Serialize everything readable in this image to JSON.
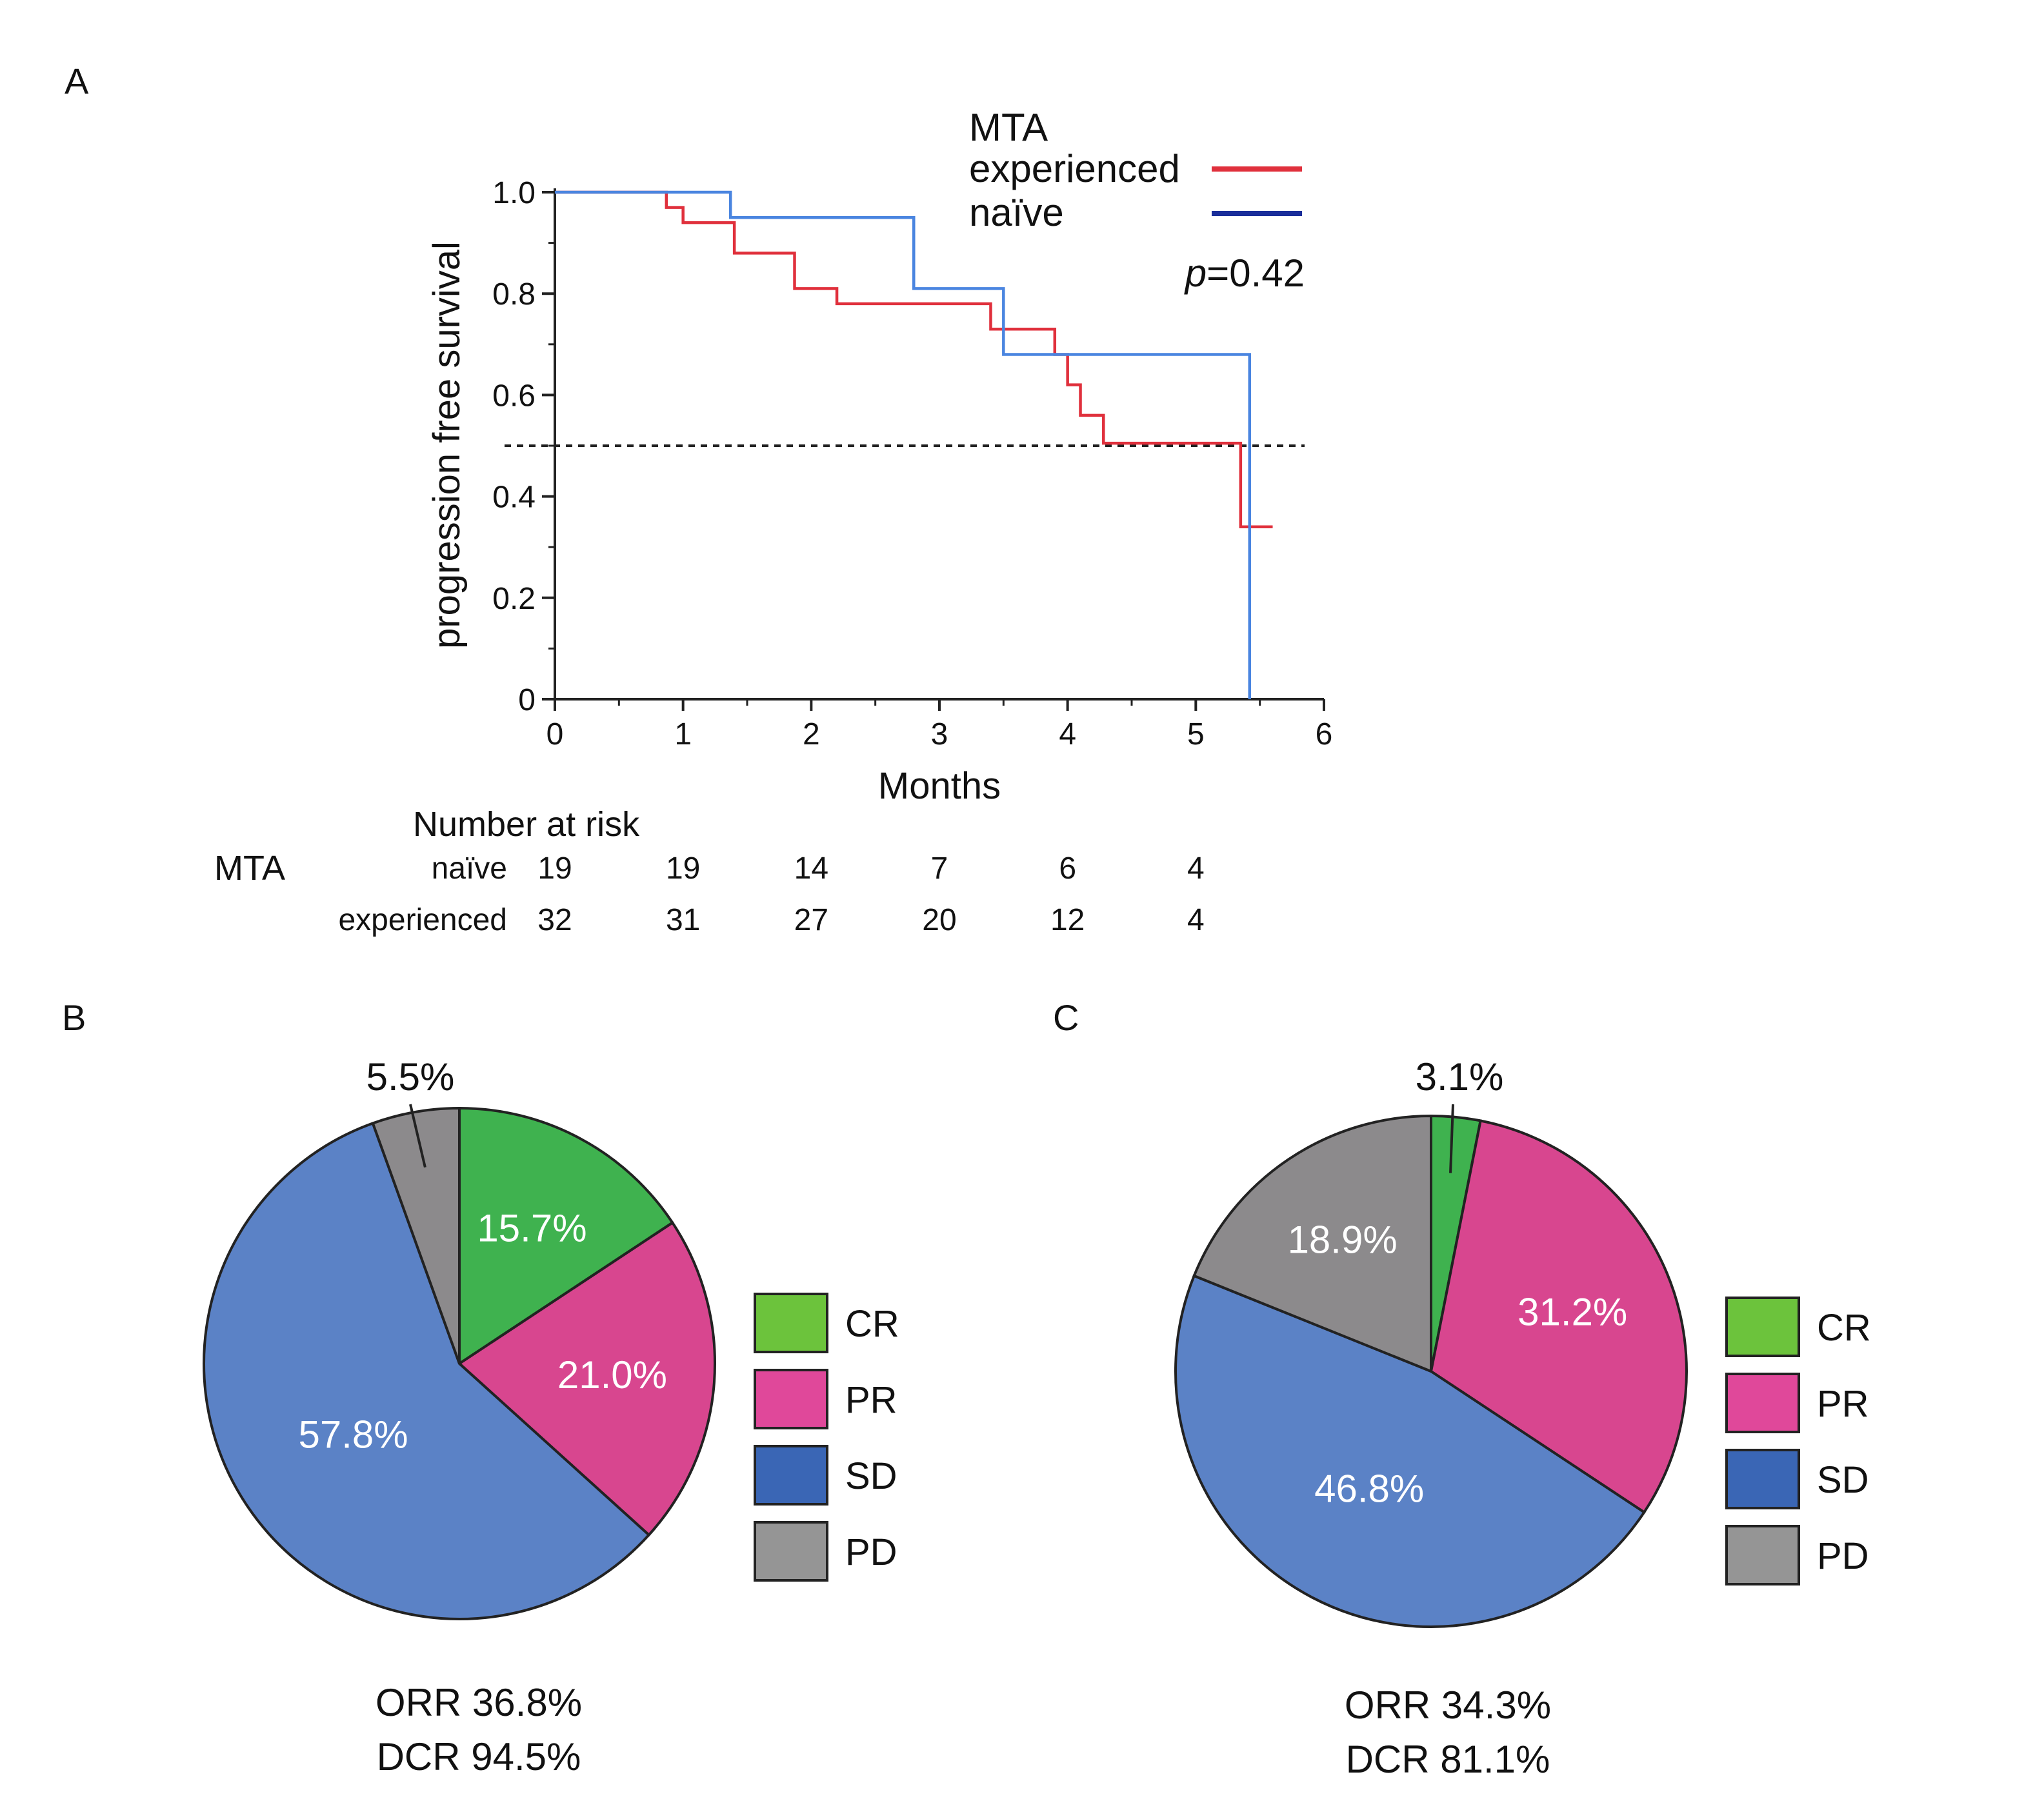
{
  "chart_data": [
    {
      "panel": "A",
      "type": "line",
      "title": "",
      "xlabel": "Months",
      "ylabel": "progression free survival",
      "xlim": [
        0,
        6
      ],
      "ylim": [
        0,
        1
      ],
      "x_ticks": [
        "0",
        "1",
        "2",
        "3",
        "4",
        "5",
        "6"
      ],
      "y_ticks": [
        "0",
        "0.2",
        "0.4",
        "0.6",
        "0.8",
        "1.0"
      ],
      "reference_line_y": 0.5,
      "legend_title": "MTA",
      "p_value": {
        "prefix": "p",
        "text": "=0.42"
      },
      "series": [
        {
          "name": "experienced",
          "color": "#e0303c",
          "steps": [
            [
              0,
              1.0
            ],
            [
              0.87,
              0.97
            ],
            [
              1.0,
              0.94
            ],
            [
              1.4,
              0.88
            ],
            [
              1.87,
              0.81
            ],
            [
              2.2,
              0.78
            ],
            [
              3.4,
              0.73
            ],
            [
              3.9,
              0.68
            ],
            [
              4.0,
              0.62
            ],
            [
              4.1,
              0.56
            ],
            [
              4.28,
              0.505
            ],
            [
              5.35,
              0.34
            ],
            [
              5.6,
              0.34
            ]
          ]
        },
        {
          "name": "naïve",
          "color": "#4a85e0",
          "legend_color": "#1a2e9a",
          "steps": [
            [
              0,
              1.0
            ],
            [
              1.37,
              0.95
            ],
            [
              2.8,
              0.81
            ],
            [
              3.5,
              0.68
            ],
            [
              5.42,
              0.0
            ]
          ]
        }
      ],
      "risk_table": {
        "title": "Number at  risk",
        "group_label": "MTA",
        "rows": [
          {
            "label": "naïve",
            "values": [
              "19",
              "19",
              "14",
              "7",
              "6",
              "4"
            ]
          },
          {
            "label": "experienced",
            "values": [
              "32",
              "31",
              "27",
              "20",
              "12",
              "4"
            ]
          }
        ]
      }
    },
    {
      "panel": "B",
      "type": "pie",
      "title": "",
      "slices": [
        {
          "name": "CR",
          "value": 15.7,
          "label": "15.7%",
          "color": "#3fb24f"
        },
        {
          "name": "PR",
          "value": 21.0,
          "label": "21.0%",
          "color": "#d8468f"
        },
        {
          "name": "SD",
          "value": 57.8,
          "label": "57.8%",
          "color": "#5b82c6"
        },
        {
          "name": "PD",
          "value": 5.5,
          "label": "5.5%",
          "color": "#8c8a8c"
        }
      ],
      "summary": [
        "ORR 36.8%",
        "DCR 94.5%"
      ]
    },
    {
      "panel": "C",
      "type": "pie",
      "title": "",
      "slices": [
        {
          "name": "CR",
          "value": 3.1,
          "label": "3.1%",
          "color": "#3fb24f"
        },
        {
          "name": "PR",
          "value": 31.2,
          "label": "31.2%",
          "color": "#d8468f"
        },
        {
          "name": "SD",
          "value": 46.8,
          "label": "46.8%",
          "color": "#5b82c6"
        },
        {
          "name": "PD",
          "value": 18.9,
          "label": "18.9%",
          "color": "#8c8a8c"
        }
      ],
      "summary": [
        "ORR 34.3%",
        "DCR 81.1%"
      ]
    }
  ],
  "pie_legend": [
    {
      "name": "CR",
      "color": "#6cc33c"
    },
    {
      "name": "PR",
      "color": "#e0489a"
    },
    {
      "name": "SD",
      "color": "#3a66b5"
    },
    {
      "name": "PD",
      "color": "#959595"
    }
  ]
}
